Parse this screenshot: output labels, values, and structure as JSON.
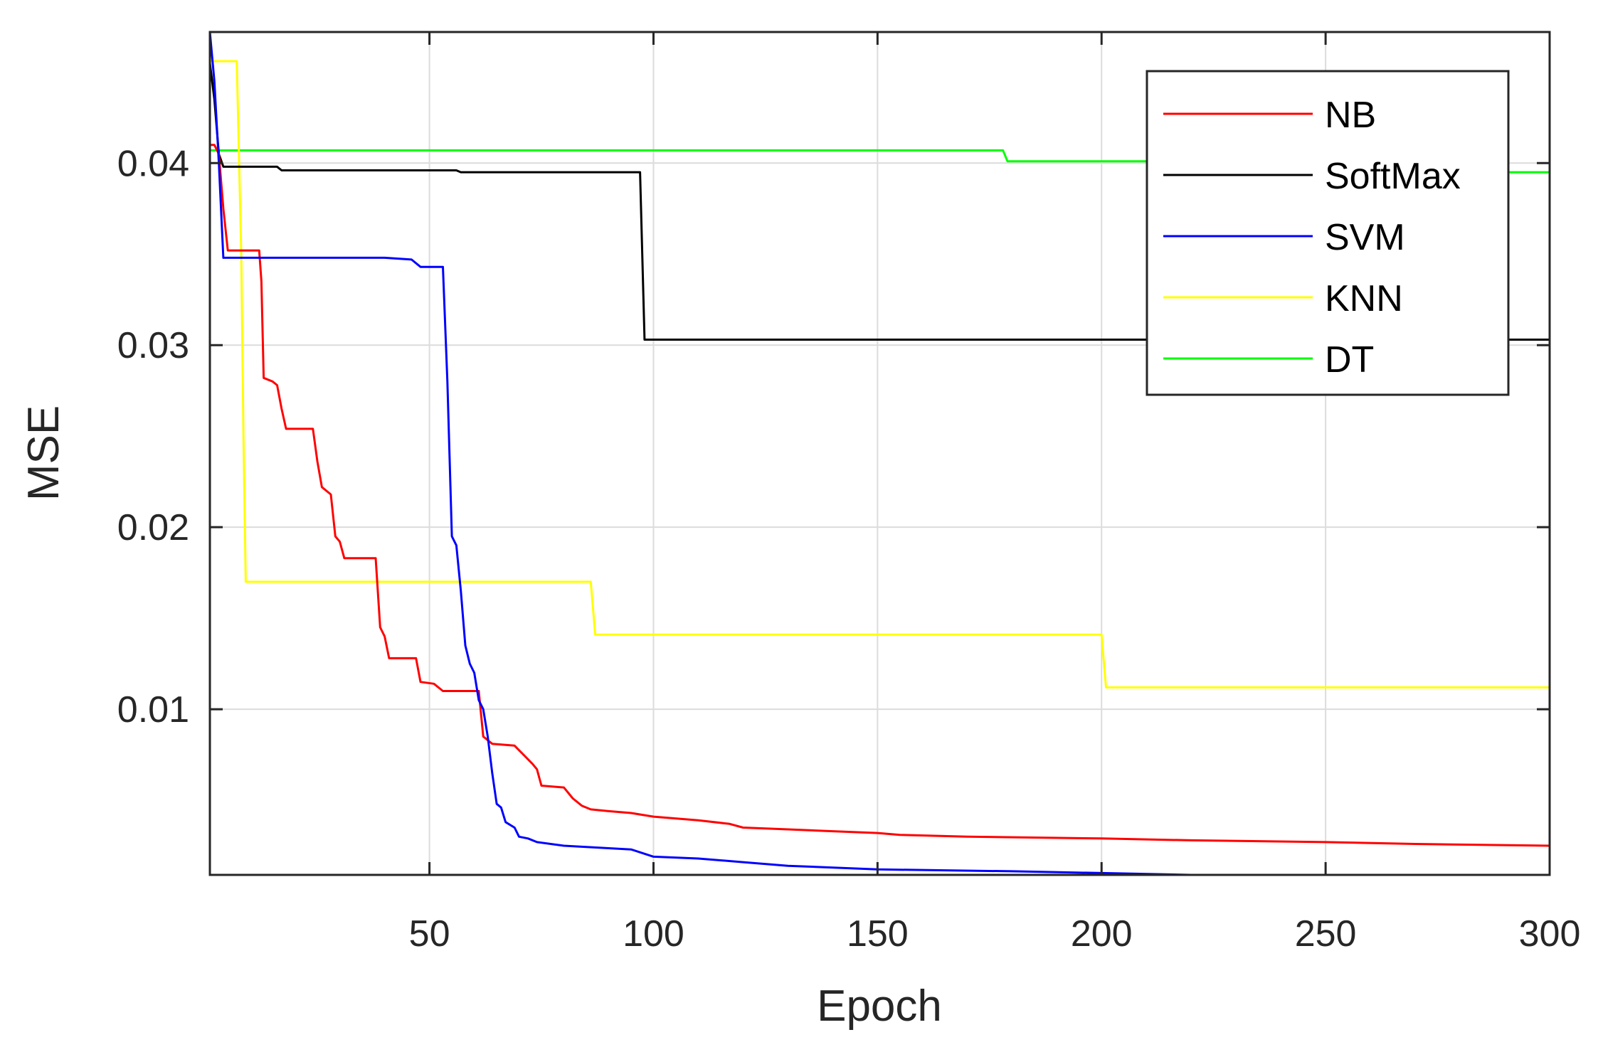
{
  "chart_data": {
    "type": "line",
    "xlabel": "Epoch",
    "ylabel": "MSE",
    "xlim": [
      1,
      300
    ],
    "ylim": [
      0.0009,
      0.0472
    ],
    "xticks": [
      50,
      100,
      150,
      200,
      250,
      300
    ],
    "xtick_labels": [
      "50",
      "100",
      "150",
      "200",
      "250",
      "300"
    ],
    "yticks": [
      0.01,
      0.02,
      0.03,
      0.04
    ],
    "ytick_labels": [
      "0.01",
      "0.02",
      "0.03",
      "0.04"
    ],
    "grid": true,
    "legend_position": "top-right",
    "series": [
      {
        "name": "NB",
        "color": "#ff0000",
        "points": [
          [
            1,
            0.041
          ],
          [
            2,
            0.041
          ],
          [
            3,
            0.0405
          ],
          [
            4,
            0.0375
          ],
          [
            5,
            0.0352
          ],
          [
            12,
            0.0352
          ],
          [
            12.5,
            0.0335
          ],
          [
            13,
            0.0282
          ],
          [
            15,
            0.028
          ],
          [
            16,
            0.0278
          ],
          [
            17,
            0.0265
          ],
          [
            18,
            0.0254
          ],
          [
            24,
            0.0254
          ],
          [
            25,
            0.0236
          ],
          [
            26,
            0.0222
          ],
          [
            28,
            0.0218
          ],
          [
            29,
            0.0195
          ],
          [
            30,
            0.0192
          ],
          [
            31,
            0.0183
          ],
          [
            38,
            0.0183
          ],
          [
            39,
            0.0145
          ],
          [
            40,
            0.014
          ],
          [
            41,
            0.0128
          ],
          [
            47,
            0.0128
          ],
          [
            48,
            0.0115
          ],
          [
            51,
            0.0114
          ],
          [
            53,
            0.011
          ],
          [
            61,
            0.011
          ],
          [
            62,
            0.0085
          ],
          [
            63,
            0.0083
          ],
          [
            64,
            0.0081
          ],
          [
            69,
            0.008
          ],
          [
            71,
            0.0075
          ],
          [
            73,
            0.007
          ],
          [
            74,
            0.0067
          ],
          [
            75,
            0.0058
          ],
          [
            80,
            0.0057
          ],
          [
            82,
            0.0051
          ],
          [
            84,
            0.0047
          ],
          [
            86,
            0.0045
          ],
          [
            90,
            0.0044
          ],
          [
            95,
            0.0043
          ],
          [
            100,
            0.0041
          ],
          [
            110,
            0.0039
          ],
          [
            117,
            0.0037
          ],
          [
            120,
            0.0035
          ],
          [
            130,
            0.0034
          ],
          [
            140,
            0.0033
          ],
          [
            150,
            0.0032
          ],
          [
            155,
            0.0031
          ],
          [
            170,
            0.003
          ],
          [
            200,
            0.0029
          ],
          [
            220,
            0.0028
          ],
          [
            250,
            0.0027
          ],
          [
            270,
            0.0026
          ],
          [
            300,
            0.0025
          ]
        ]
      },
      {
        "name": "SoftMax",
        "color": "#000000",
        "points": [
          [
            1,
            0.0455
          ],
          [
            2,
            0.0435
          ],
          [
            3,
            0.0405
          ],
          [
            4,
            0.0398
          ],
          [
            16,
            0.0398
          ],
          [
            17,
            0.0396
          ],
          [
            56,
            0.0396
          ],
          [
            57,
            0.0395
          ],
          [
            97,
            0.0395
          ],
          [
            98,
            0.0303
          ],
          [
            300,
            0.0303
          ]
        ]
      },
      {
        "name": "SVM",
        "color": "#0000ff",
        "points": [
          [
            1,
            0.0472
          ],
          [
            2,
            0.0445
          ],
          [
            3,
            0.04
          ],
          [
            4,
            0.0348
          ],
          [
            40,
            0.0348
          ],
          [
            46,
            0.0347
          ],
          [
            48,
            0.0343
          ],
          [
            53,
            0.0343
          ],
          [
            54,
            0.028
          ],
          [
            55,
            0.0195
          ],
          [
            56,
            0.019
          ],
          [
            57,
            0.0165
          ],
          [
            58,
            0.0135
          ],
          [
            59,
            0.0125
          ],
          [
            60,
            0.012
          ],
          [
            61,
            0.0105
          ],
          [
            62,
            0.01
          ],
          [
            63,
            0.0085
          ],
          [
            64,
            0.0065
          ],
          [
            65,
            0.0048
          ],
          [
            66,
            0.0046
          ],
          [
            67,
            0.0038
          ],
          [
            69,
            0.0035
          ],
          [
            70,
            0.003
          ],
          [
            72,
            0.0029
          ],
          [
            74,
            0.0027
          ],
          [
            80,
            0.0025
          ],
          [
            95,
            0.0023
          ],
          [
            100,
            0.0019
          ],
          [
            110,
            0.0018
          ],
          [
            120,
            0.0016
          ],
          [
            130,
            0.0014
          ],
          [
            150,
            0.0012
          ],
          [
            180,
            0.0011
          ],
          [
            200,
            0.001
          ],
          [
            220,
            0.0009
          ],
          [
            300,
            0.0009
          ]
        ]
      },
      {
        "name": "KNN",
        "color": "#ffff00",
        "points": [
          [
            1,
            0.0456
          ],
          [
            7,
            0.0456
          ],
          [
            8,
            0.035
          ],
          [
            8.5,
            0.025
          ],
          [
            9,
            0.017
          ],
          [
            86,
            0.017
          ],
          [
            87,
            0.0141
          ],
          [
            200,
            0.0141
          ],
          [
            201,
            0.0112
          ],
          [
            300,
            0.0112
          ]
        ]
      },
      {
        "name": "DT",
        "color": "#00ff00",
        "points": [
          [
            1,
            0.0407
          ],
          [
            178,
            0.0407
          ],
          [
            179,
            0.0401
          ],
          [
            258,
            0.0401
          ],
          [
            260,
            0.0395
          ],
          [
            300,
            0.0395
          ]
        ]
      }
    ]
  }
}
